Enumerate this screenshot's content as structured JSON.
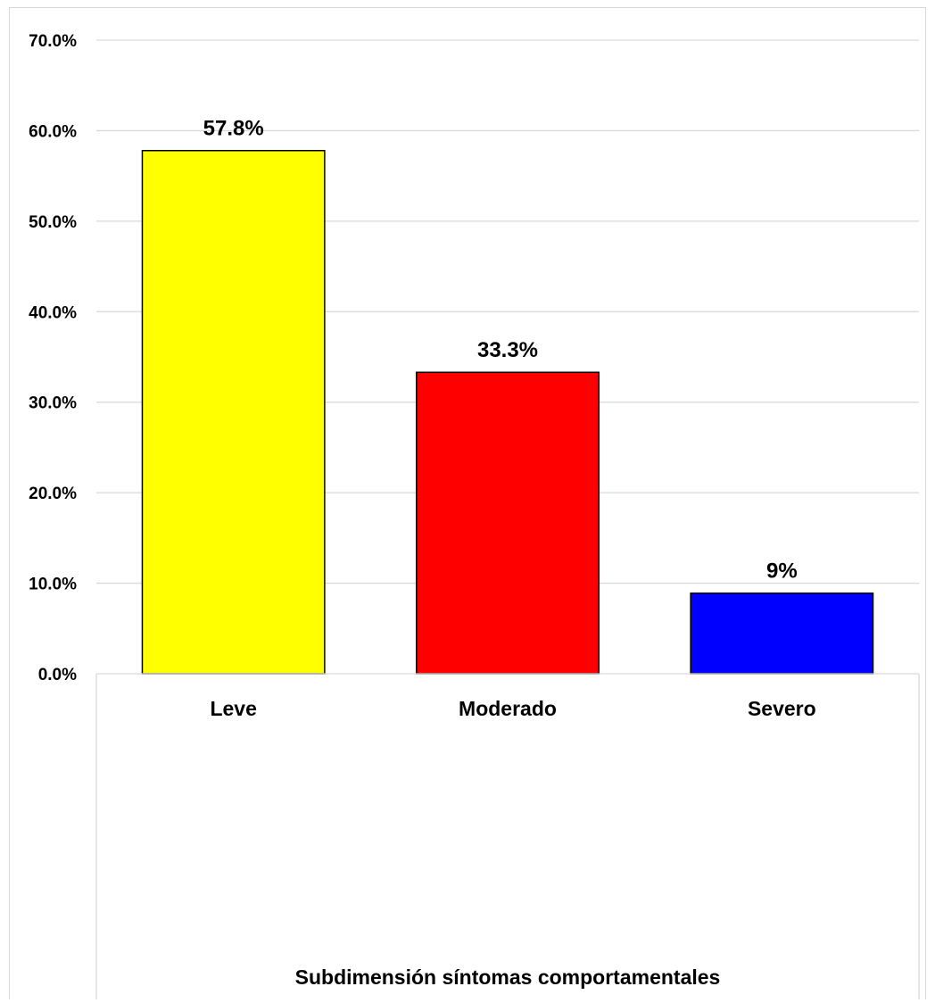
{
  "chart_data": {
    "type": "bar",
    "categories": [
      "Leve",
      "Moderado",
      "Severo"
    ],
    "values": [
      57.8,
      33.3,
      8.9
    ],
    "data_labels": [
      "57.8%",
      "33.3%",
      "9%"
    ],
    "colors": [
      "#ffff00",
      "#ff0000",
      "#0000ff"
    ],
    "title": "",
    "xlabel": "Subdimensión síntomas comportamentales",
    "ylabel": "",
    "ylim": [
      0,
      70
    ],
    "y_ticks": [
      0,
      10,
      20,
      30,
      40,
      50,
      60,
      70
    ],
    "y_tick_labels": [
      "0.0%",
      "10.0%",
      "20.0%",
      "30.0%",
      "40.0%",
      "50.0%",
      "60.0%",
      "70.0%"
    ],
    "grid": true,
    "legend": "none"
  }
}
